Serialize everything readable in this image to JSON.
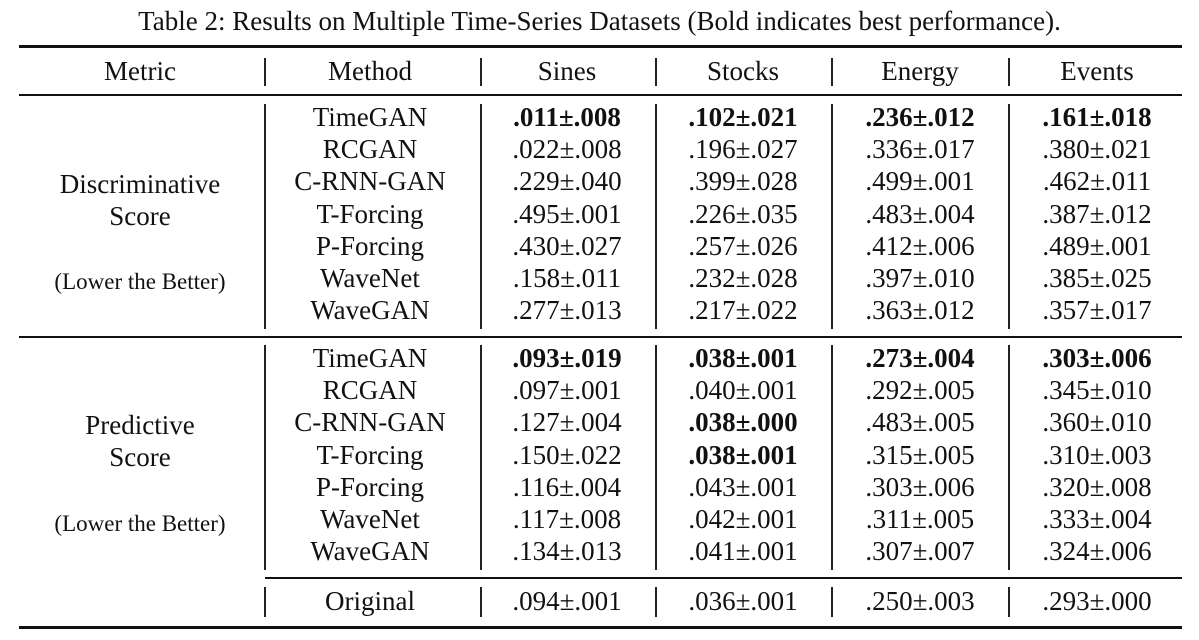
{
  "caption": "Table 2: Results on Multiple Time-Series Datasets (Bold indicates best performance).",
  "headers": {
    "metric": "Metric",
    "method": "Method",
    "datasets": [
      "Sines",
      "Stocks",
      "Energy",
      "Events"
    ]
  },
  "sections": [
    {
      "metric_lines": [
        "Discriminative",
        "Score",
        "(Lower the Better)"
      ],
      "rows": [
        {
          "method": "TimeGAN",
          "values": [
            ".011±.008",
            ".102±.021",
            ".236±.012",
            ".161±.018"
          ],
          "best": [
            true,
            true,
            true,
            true
          ]
        },
        {
          "method": "RCGAN",
          "values": [
            ".022±.008",
            ".196±.027",
            ".336±.017",
            ".380±.021"
          ],
          "best": [
            false,
            false,
            false,
            false
          ]
        },
        {
          "method": "C-RNN-GAN",
          "values": [
            ".229±.040",
            ".399±.028",
            ".499±.001",
            ".462±.011"
          ],
          "best": [
            false,
            false,
            false,
            false
          ]
        },
        {
          "method": "T-Forcing",
          "values": [
            ".495±.001",
            ".226±.035",
            ".483±.004",
            ".387±.012"
          ],
          "best": [
            false,
            false,
            false,
            false
          ]
        },
        {
          "method": "P-Forcing",
          "values": [
            ".430±.027",
            ".257±.026",
            ".412±.006",
            ".489±.001"
          ],
          "best": [
            false,
            false,
            false,
            false
          ]
        },
        {
          "method": "WaveNet",
          "values": [
            ".158±.011",
            ".232±.028",
            ".397±.010",
            ".385±.025"
          ],
          "best": [
            false,
            false,
            false,
            false
          ]
        },
        {
          "method": "WaveGAN",
          "values": [
            ".277±.013",
            ".217±.022",
            ".363±.012",
            ".357±.017"
          ],
          "best": [
            false,
            false,
            false,
            false
          ]
        }
      ]
    },
    {
      "metric_lines": [
        "Predictive",
        "Score",
        "(Lower the Better)"
      ],
      "rows": [
        {
          "method": "TimeGAN",
          "values": [
            ".093±.019",
            ".038±.001",
            ".273±.004",
            ".303±.006"
          ],
          "best": [
            true,
            true,
            true,
            true
          ]
        },
        {
          "method": "RCGAN",
          "values": [
            ".097±.001",
            ".040±.001",
            ".292±.005",
            ".345±.010"
          ],
          "best": [
            false,
            false,
            false,
            false
          ]
        },
        {
          "method": "C-RNN-GAN",
          "values": [
            ".127±.004",
            ".038±.000",
            ".483±.005",
            ".360±.010"
          ],
          "best": [
            false,
            true,
            false,
            false
          ]
        },
        {
          "method": "T-Forcing",
          "values": [
            ".150±.022",
            ".038±.001",
            ".315±.005",
            ".310±.003"
          ],
          "best": [
            false,
            true,
            false,
            false
          ]
        },
        {
          "method": "P-Forcing",
          "values": [
            ".116±.004",
            ".043±.001",
            ".303±.006",
            ".320±.008"
          ],
          "best": [
            false,
            false,
            false,
            false
          ]
        },
        {
          "method": "WaveNet",
          "values": [
            ".117±.008",
            ".042±.001",
            ".311±.005",
            ".333±.004"
          ],
          "best": [
            false,
            false,
            false,
            false
          ]
        },
        {
          "method": "WaveGAN",
          "values": [
            ".134±.013",
            ".041±.001",
            ".307±.007",
            ".324±.006"
          ],
          "best": [
            false,
            false,
            false,
            false
          ]
        }
      ]
    }
  ],
  "original_row": {
    "method": "Original",
    "values": [
      ".094±.001",
      ".036±.001",
      ".250±.003",
      ".293±.000"
    ]
  }
}
